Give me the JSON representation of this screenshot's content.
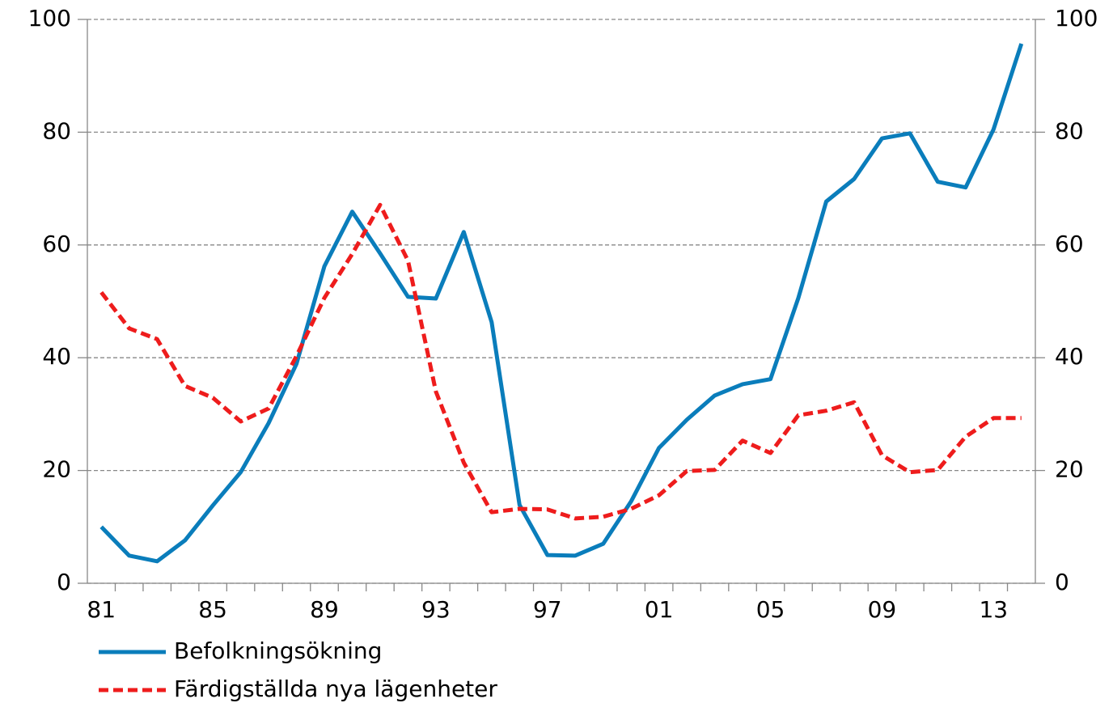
{
  "chart_data": {
    "type": "line",
    "categories": [
      "81",
      null,
      null,
      null,
      "85",
      null,
      null,
      null,
      "89",
      null,
      null,
      null,
      "93",
      null,
      null,
      null,
      "97",
      null,
      null,
      null,
      "01",
      null,
      null,
      null,
      "05",
      null,
      null,
      null,
      "09",
      null,
      null,
      null,
      "13",
      null
    ],
    "series": [
      {
        "name": "Befolkningsökning",
        "color": "#0a7dbb",
        "dash": false,
        "values": [
          10,
          4.9,
          3.9,
          7.6,
          13.8,
          19.7,
          28.4,
          38.9,
          56.2,
          65.9,
          58.5,
          50.8,
          50.5,
          62.3,
          46.3,
          13.9,
          5.0,
          4.9,
          7.0,
          14.5,
          24,
          29,
          33.3,
          35.3,
          36.2,
          50.6,
          67.7,
          71.7,
          78.9,
          79.8,
          71.2,
          70.2,
          80.5,
          95.7
        ]
      },
      {
        "name": "Färdigställda nya lägenheter",
        "color": "#ee1c1c",
        "dash": true,
        "values": [
          51.6,
          45.2,
          43.3,
          35,
          32.9,
          28.7,
          31,
          40.3,
          50.6,
          58.4,
          67.1,
          57.2,
          34,
          21.4,
          12.6,
          13.2,
          13.1,
          11.5,
          11.8,
          13.2,
          15.6,
          19.9,
          20.1,
          25.3,
          23.1,
          29.8,
          30.6,
          32.1,
          22.7,
          19.7,
          20.1,
          26,
          29.3,
          29.3
        ]
      }
    ],
    "ylim": [
      0,
      100
    ],
    "yticks": [
      0,
      20,
      40,
      60,
      80,
      100
    ],
    "y2lim": [
      0,
      100
    ],
    "y2ticks": [
      0,
      20,
      40,
      60,
      80,
      100
    ],
    "grid": true,
    "legend": "bottom-left"
  }
}
